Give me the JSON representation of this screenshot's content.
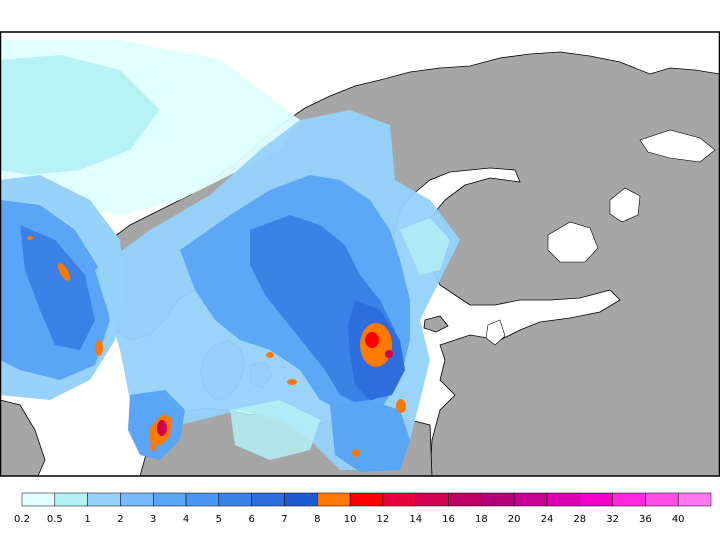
{
  "map": {
    "land_color": "#a6a6a6",
    "sea_color": "#ffffff",
    "coast_color": "#000000"
  },
  "legend": {
    "bins": [
      {
        "label": "0.2",
        "color": "#e0ffff"
      },
      {
        "label": "0.5",
        "color": "#b4f0f5"
      },
      {
        "label": "1",
        "color": "#96d2fa"
      },
      {
        "label": "2",
        "color": "#78b9fa"
      },
      {
        "label": "3",
        "color": "#5aa5f5"
      },
      {
        "label": "4",
        "color": "#4b96f0"
      },
      {
        "label": "5",
        "color": "#3c82e6"
      },
      {
        "label": "6",
        "color": "#2d6edc"
      },
      {
        "label": "7",
        "color": "#1e5ad2"
      },
      {
        "label": "8",
        "color": "#ff7800"
      },
      {
        "label": "10",
        "color": "#ff0000"
      },
      {
        "label": "12",
        "color": "#e6003c"
      },
      {
        "label": "14",
        "color": "#d20050"
      },
      {
        "label": "16",
        "color": "#be0064"
      },
      {
        "label": "18",
        "color": "#b40078"
      },
      {
        "label": "20",
        "color": "#c80096"
      },
      {
        "label": "24",
        "color": "#dc00b4"
      },
      {
        "label": "28",
        "color": "#f000c8"
      },
      {
        "label": "32",
        "color": "#ff28dc"
      },
      {
        "label": "36",
        "color": "#ff50e6"
      },
      {
        "label": "40",
        "color": "#ff78f0"
      }
    ]
  }
}
